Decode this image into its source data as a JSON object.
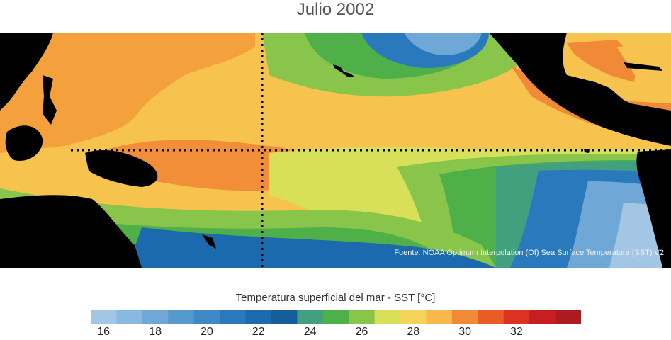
{
  "title": "Julio 2002",
  "source": "Fuente: NOAA Optimum Interpolation (OI) Sea Surface Temperature (SST) V2",
  "legend": {
    "title": "Temperatura superficial del mar - SST  [°C]",
    "colors": [
      "#a3c6e4",
      "#8ab9df",
      "#6fa8d6",
      "#5599cd",
      "#3f89c6",
      "#2b79bd",
      "#1c6aae",
      "#155d99",
      "#43a07e",
      "#4fb04a",
      "#88c54a",
      "#d8e05a",
      "#f3d35a",
      "#f8b84a",
      "#f18a36",
      "#ea5c25",
      "#db3222",
      "#c71e23",
      "#ad1a22"
    ],
    "ticks": [
      "16",
      "18",
      "20",
      "22",
      "24",
      "26",
      "28",
      "30",
      "32"
    ]
  },
  "map": {
    "region": "Pacífico tropical",
    "sea_color": "#f6c44e",
    "land_color": "#000000",
    "guides": [
      "equator-line",
      "dateline-line"
    ]
  }
}
